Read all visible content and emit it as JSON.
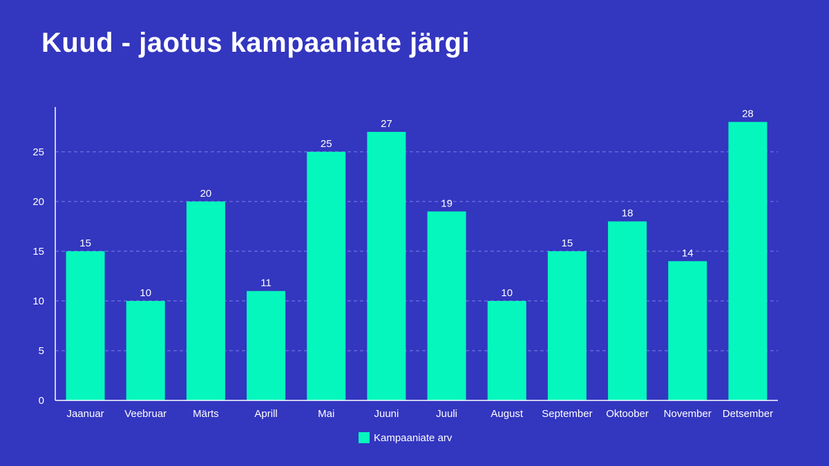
{
  "colors": {
    "background": "#3336bf",
    "bar": "#05f7be",
    "gridline": "#7f82e6",
    "axis": "#ffffff",
    "text": "#ffffff"
  },
  "chart_data": {
    "type": "bar",
    "title": "Kuud - jaotus kampaaniate järgi",
    "xlabel": "",
    "ylabel": "",
    "categories": [
      "Jaanuar",
      "Veebruar",
      "Märts",
      "Aprill",
      "Mai",
      "Juuni",
      "Juuli",
      "August",
      "September",
      "Oktoober",
      "November",
      "Detsember"
    ],
    "series": [
      {
        "name": "Kampaaniate arv",
        "values": [
          15,
          10,
          20,
          11,
          25,
          27,
          19,
          10,
          15,
          18,
          14,
          28
        ]
      }
    ],
    "ylim": [
      0,
      29.5
    ],
    "yticks": [
      0,
      5,
      10,
      15,
      20,
      25
    ],
    "grid": true,
    "gridStyle": "dashed",
    "legend_position": "bottom-center",
    "data_labels": true
  }
}
